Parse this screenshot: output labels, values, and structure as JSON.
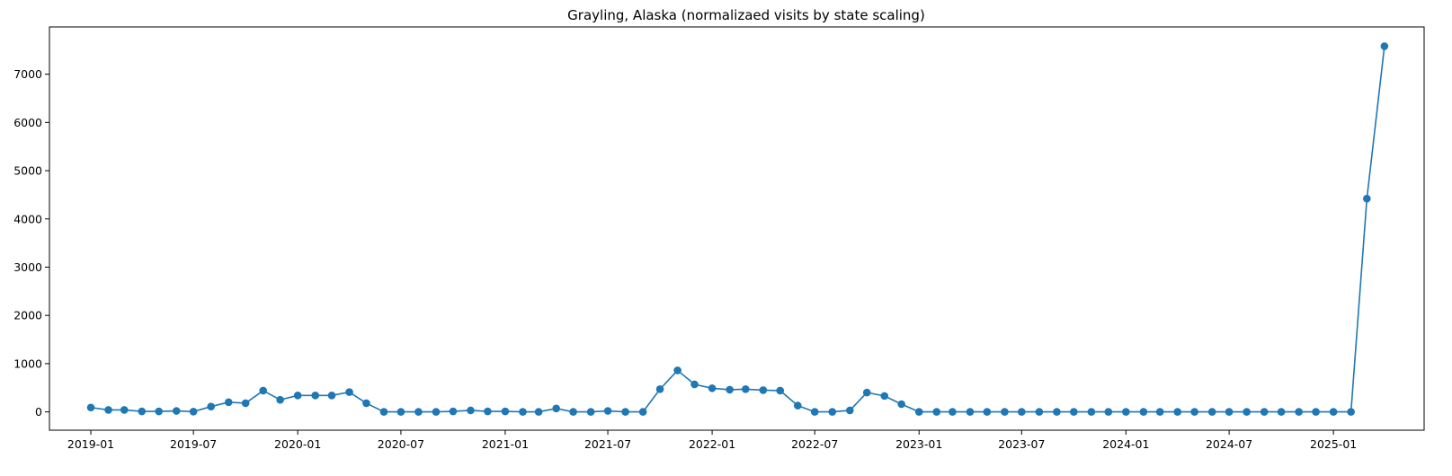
{
  "chart_data": {
    "type": "line",
    "title": "Grayling, Alaska (normalizaed visits by state scaling)",
    "xlabel": "",
    "ylabel": "",
    "ylim": [
      -380,
      7980
    ],
    "xlim": [
      "2018-10-20",
      "2025-06-10"
    ],
    "grid": false,
    "marker": "circle",
    "color": "#1f77b4",
    "yticks": [
      0,
      1000,
      2000,
      3000,
      4000,
      5000,
      6000,
      7000
    ],
    "ytick_labels": [
      "0",
      "1000",
      "2000",
      "3000",
      "4000",
      "5000",
      "6000",
      "7000"
    ],
    "xticks": [
      "2019-01-01",
      "2019-07-01",
      "2020-01-01",
      "2020-07-01",
      "2021-01-01",
      "2021-07-01",
      "2022-01-01",
      "2022-07-01",
      "2023-01-01",
      "2023-07-01",
      "2024-01-01",
      "2024-07-01",
      "2025-01-01"
    ],
    "xtick_labels": [
      "2019-01",
      "2019-07",
      "2020-01",
      "2020-07",
      "2021-01",
      "2021-07",
      "2022-01",
      "2022-07",
      "2023-01",
      "2023-07",
      "2024-01",
      "2024-07",
      "2025-01"
    ],
    "series": [
      {
        "x": [
          "2019-01-01",
          "2019-02-01",
          "2019-03-01",
          "2019-04-01",
          "2019-05-01",
          "2019-06-01",
          "2019-07-01",
          "2019-08-01",
          "2019-09-01",
          "2019-10-01",
          "2019-11-01",
          "2019-12-01",
          "2020-01-01",
          "2020-02-01",
          "2020-03-01",
          "2020-04-01",
          "2020-05-01",
          "2020-06-01",
          "2020-07-01",
          "2020-08-01",
          "2020-09-01",
          "2020-10-01",
          "2020-11-01",
          "2020-12-01",
          "2021-01-01",
          "2021-02-01",
          "2021-03-01",
          "2021-04-01",
          "2021-05-01",
          "2021-06-01",
          "2021-07-01",
          "2021-08-01",
          "2021-09-01",
          "2021-10-01",
          "2021-11-01",
          "2021-12-01",
          "2022-01-01",
          "2022-02-01",
          "2022-03-01",
          "2022-04-01",
          "2022-05-01",
          "2022-06-01",
          "2022-07-01",
          "2022-08-01",
          "2022-09-01",
          "2022-10-01",
          "2022-11-01",
          "2022-12-01",
          "2023-01-01",
          "2023-02-01",
          "2023-03-01",
          "2023-04-01",
          "2023-05-01",
          "2023-06-01",
          "2023-07-01",
          "2023-08-01",
          "2023-09-01",
          "2023-10-01",
          "2023-11-01",
          "2023-12-01",
          "2024-01-01",
          "2024-02-01",
          "2024-03-01",
          "2024-04-01",
          "2024-05-01",
          "2024-06-01",
          "2024-07-01",
          "2024-08-01",
          "2024-09-01",
          "2024-10-01",
          "2024-11-01",
          "2024-12-01",
          "2025-01-01",
          "2025-02-01",
          "2025-03-01",
          "2025-04-01"
        ],
        "y": [
          90,
          40,
          40,
          10,
          10,
          20,
          5,
          110,
          200,
          180,
          440,
          250,
          340,
          340,
          340,
          410,
          180,
          0,
          0,
          0,
          0,
          10,
          30,
          10,
          10,
          0,
          0,
          70,
          0,
          0,
          20,
          0,
          0,
          470,
          860,
          570,
          490,
          460,
          470,
          450,
          440,
          130,
          0,
          0,
          30,
          400,
          330,
          160,
          0,
          0,
          0,
          0,
          0,
          0,
          0,
          0,
          0,
          0,
          0,
          0,
          0,
          0,
          0,
          0,
          0,
          0,
          0,
          0,
          0,
          0,
          0,
          0,
          0,
          0,
          4420,
          7580
        ]
      }
    ]
  }
}
